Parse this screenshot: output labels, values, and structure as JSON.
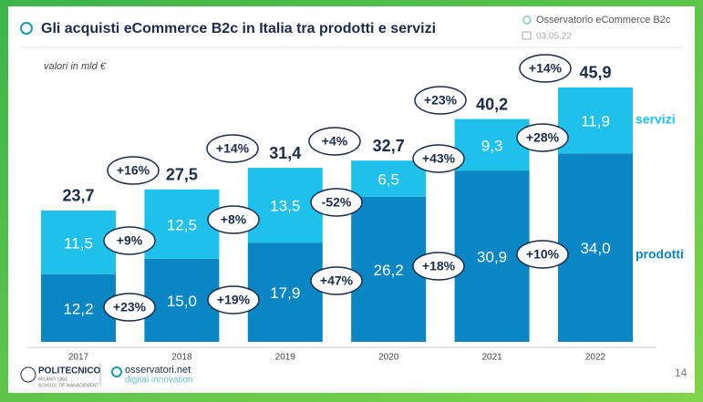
{
  "header": {
    "title": "Gli acquisti eCommerce B2c in Italia tra prodotti e servizi",
    "source": "Osservatorio eCommerce B2c",
    "date": "03.05.22"
  },
  "chart_data": {
    "type": "bar",
    "stacked": true,
    "subtitle": "valori in mld €",
    "categories": [
      "2017",
      "2018",
      "2019",
      "2020",
      "2021",
      "2022"
    ],
    "series": [
      {
        "name": "prodotti",
        "color": "#0b86c4",
        "values": [
          12.2,
          15.0,
          17.9,
          26.2,
          30.9,
          34.0
        ],
        "value_labels": [
          "12,2",
          "15,0",
          "17,9",
          "26,2",
          "30,9",
          "34,0"
        ]
      },
      {
        "name": "servizi",
        "color": "#1fc0ea",
        "values": [
          11.5,
          12.5,
          13.5,
          6.5,
          9.3,
          11.9
        ],
        "value_labels": [
          "11,5",
          "12,5",
          "13,5",
          "6,5",
          "9,3",
          "11,9"
        ]
      }
    ],
    "totals": {
      "values": [
        23.7,
        27.5,
        31.4,
        32.7,
        40.2,
        45.9
      ],
      "value_labels": [
        "23,7",
        "27,5",
        "31,4",
        "32,7",
        "40,2",
        "45,9"
      ]
    },
    "growth_labels": {
      "totale": [
        "+16%",
        "+14%",
        "+4%",
        "+23%",
        "+14%"
      ],
      "servizi": [
        "+9%",
        "+8%",
        "-52%",
        "+43%",
        "+28%"
      ],
      "prodotti": [
        "+23%",
        "+19%",
        "+47%",
        "+18%",
        "+10%"
      ]
    }
  },
  "footer": {
    "university": "POLITECNICO",
    "university_sub": "MILANO 1863",
    "school": "SCHOOL OF MANAGEMENT",
    "brand": "osservatori.net",
    "brand_sub": "digital innovation",
    "page": "14"
  }
}
